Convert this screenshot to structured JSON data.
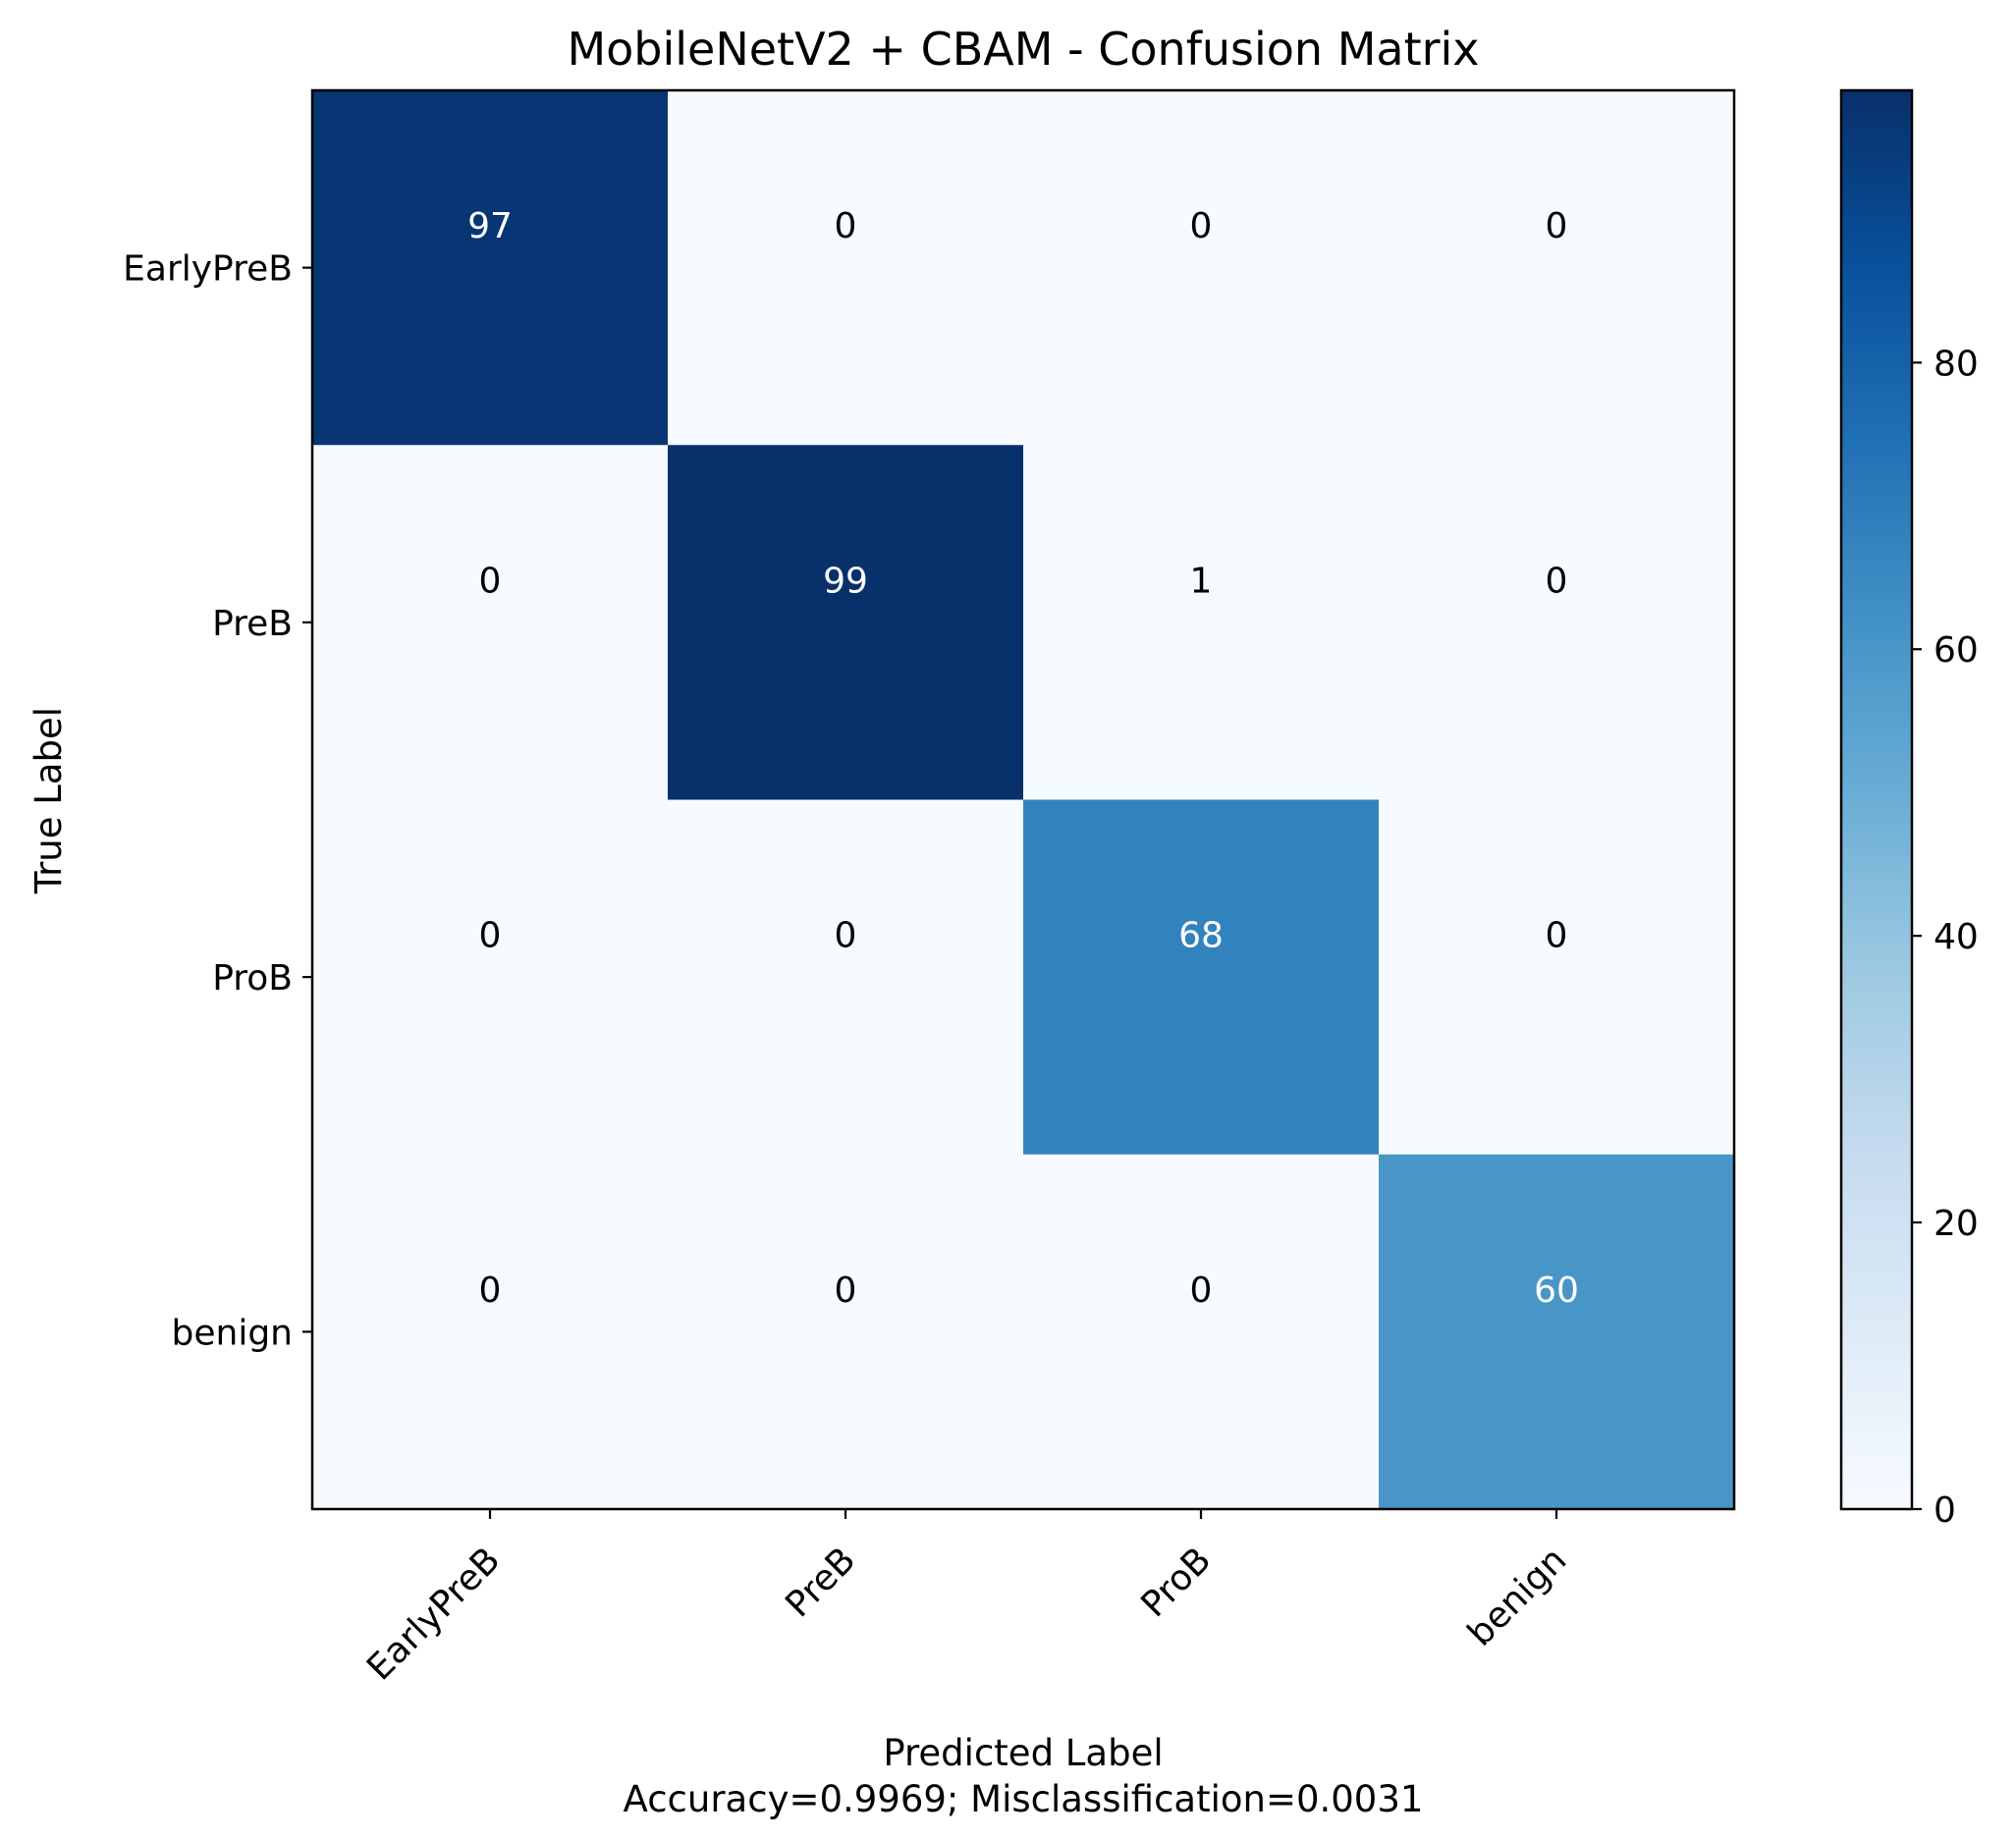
{
  "chart_data": {
    "type": "heatmap",
    "title": "MobileNetV2 + CBAM - Confusion Matrix",
    "xlabel": "Predicted Label",
    "xlabel_note": "Accuracy=0.9969; Misclassification=0.0031",
    "ylabel": "True Label",
    "x_categories": [
      "EarlyPreB",
      "PreB",
      "ProB",
      "benign"
    ],
    "y_categories": [
      "EarlyPreB",
      "PreB",
      "ProB",
      "benign"
    ],
    "matrix": [
      [
        97,
        0,
        0,
        0
      ],
      [
        0,
        99,
        1,
        0
      ],
      [
        0,
        0,
        68,
        0
      ],
      [
        0,
        0,
        0,
        60
      ]
    ],
    "colormap": "Blues",
    "value_range": [
      0,
      99
    ],
    "colorbar_ticks": [
      0,
      20,
      40,
      60,
      80
    ],
    "text_colors": {
      "dark_cell": "#ffffff",
      "light_cell": "#000000"
    },
    "grid": false
  }
}
